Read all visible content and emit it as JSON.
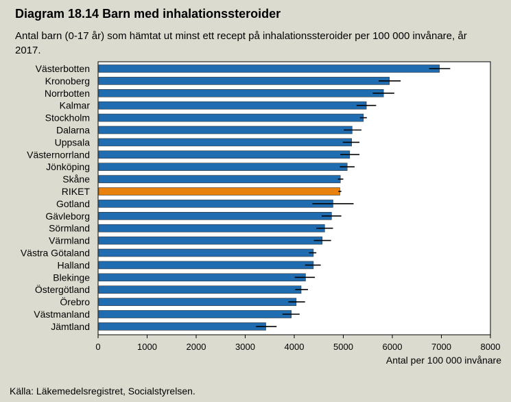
{
  "header": {
    "title": "Diagram 18.14 Barn med inhalationssteroider",
    "subtitle": "Antal barn (0-17 år) som hämtat ut minst ett recept på inhalationssteroider per 100 000 invånare, år 2017."
  },
  "footer": {
    "source": "Källa: Läkemedelsregistret, Socialstyrelsen."
  },
  "chart_data": {
    "type": "bar",
    "orientation": "horizontal",
    "title": "Diagram 18.14 Barn med inhalationssteroider",
    "xlabel": "Antal per 100 000 invånare",
    "ylabel": "",
    "xlim": [
      0,
      8000
    ],
    "xticks": [
      0,
      1000,
      2000,
      3000,
      4000,
      5000,
      6000,
      7000,
      8000
    ],
    "grid": false,
    "categories": [
      "Västerbotten",
      "Kronoberg",
      "Norrbotten",
      "Kalmar",
      "Stockholm",
      "Dalarna",
      "Uppsala",
      "Västernorrland",
      "Jönköping",
      "Skåne",
      "RIKET",
      "Gotland",
      "Gävleborg",
      "Sörmland",
      "Värmland",
      "Västra Götaland",
      "Halland",
      "Blekinge",
      "Östergötland",
      "Örebro",
      "Västmanland",
      "Jämtland"
    ],
    "values": [
      6960,
      5940,
      5820,
      5470,
      5410,
      5180,
      5170,
      5130,
      5080,
      4940,
      4930,
      4790,
      4760,
      4620,
      4570,
      4390,
      4390,
      4230,
      4140,
      4040,
      3940,
      3420
    ],
    "error_low": [
      6750,
      5720,
      5600,
      5270,
      5340,
      5010,
      4990,
      4940,
      4930,
      4890,
      4900,
      4370,
      4560,
      4450,
      4400,
      4300,
      4220,
      4010,
      4020,
      3880,
      3760,
      3220
    ],
    "error_high": [
      7180,
      6170,
      6040,
      5670,
      5480,
      5370,
      5330,
      5330,
      5230,
      5000,
      4960,
      5210,
      4960,
      4790,
      4750,
      4450,
      4540,
      4420,
      4280,
      4220,
      4110,
      3640
    ],
    "highlight": "RIKET",
    "colors": {
      "bar": "#1f6cb0",
      "highlight": "#e8820c",
      "error": "#000000",
      "plot_bg": "#ffffff"
    }
  }
}
